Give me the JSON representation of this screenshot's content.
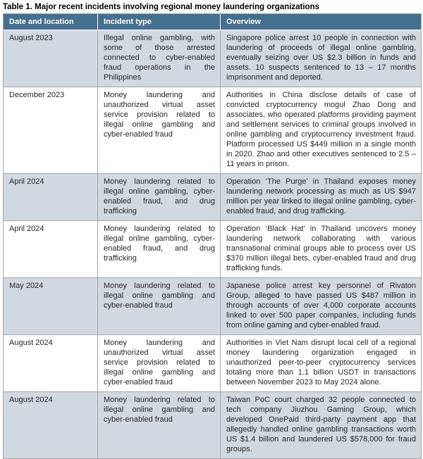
{
  "title": "Table 1. Major recent incidents involving regional money laundering organizations",
  "colors": {
    "header_background": "#44708F",
    "header_text": "#FFFFFF",
    "row_alternate_background": "#D2D8E0",
    "row_background": "#FFFFFF",
    "cell_border": "#A6A6A6",
    "body_text": "#262626",
    "title_text": "#000000"
  },
  "table": {
    "headers": [
      "Date and location",
      "Incident type",
      "Overview"
    ],
    "rows": [
      {
        "date": "August 2023",
        "incident": "Illegal online gambling, with some of those arrested connected to cyber-enabled fraud operations in the Philippines",
        "overview": "Singapore police arrest 10 people in connection with laundering of proceeds of illegal online gambling, eventually seizing over US $2.3 billion in funds and assets. 10 suspects sentenced to 13 – 17 months imprisonment and deported."
      },
      {
        "date": "December 2023",
        "incident": "Money laundering and unauthorized virtual asset service provision related to illegal online gambling and cyber-enabled fraud",
        "overview": "Authorities in China disclose details of case of convicted cryptocurrency mogul Zhao Dong and associates, who operated platforms providing payment and settlement services to criminal groups involved in online gambling and cryptocurrency investment fraud. Platform processed US $449 million in a single month in 2020. Zhao and other executives sentenced to 2.5 – 11 years in prison."
      },
      {
        "date": "April 2024",
        "incident": "Money laundering related to illegal online gambling, cyber-enabled fraud, and drug trafficking",
        "overview": "Operation ‘The Purge’ in Thailand exposes money laundering network processing as much as US $947 million per year linked to illegal online gambling, cyber-enabled fraud, and drug trafficking."
      },
      {
        "date": "April 2024",
        "incident": "Money laundering related to illegal online gambling, cyber-enabled fraud, and drug trafficking",
        "overview": "Operation ‘Black Hat’ in Thailand uncovers money laundering network collaborating with various transnational criminal groups able to process over US $370 million illegal bets, cyber-enabled fraud and drug trafficking funds."
      },
      {
        "date": "May 2024",
        "incident": "Money laundering related to illegal online gambling and cyber-enabled fraud",
        "overview": "Japanese police arrest key personnel of Rivaton Group, alleged to have passed US $487 million in through accounts of over 4,000 corporate accounts linked to over 500 paper companies, including funds from online gaming and cyber-enabled fraud."
      },
      {
        "date": "August 2024",
        "incident": "Money laundering and unauthorized virtual asset service provision related to illegal online gambling and cyber-enabled fraud",
        "overview": "Authorities in Viet Nam disrupt local cell of a regional money laundering organization engaged in unauthorized peer-to-peer cryptocurrency services totaling more than 1.1 billion USDT in transactions between November 2023 to May 2024 alone."
      },
      {
        "date": "August 2024",
        "incident": "Money laundering related to illegal online gambling and cyber-enabled fraud",
        "overview": "Taiwan PoC court charged 32 people connected to tech company Jiuzhou Gaming Group, which developed OnePaid third-party payment app that allegedly handled online gambling transactions worth US $1.4 billion and laundered US $578,000 for fraud groups."
      }
    ]
  }
}
